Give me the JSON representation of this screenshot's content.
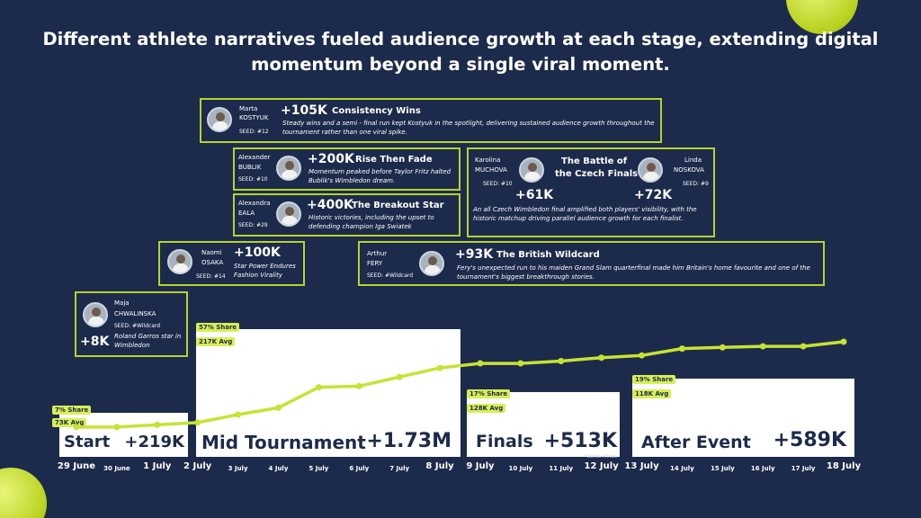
{
  "title": "Different athlete narratives fueled audience growth at each stage, extending digital momentum beyond a single viral moment.",
  "colors": {
    "background": "#1c2b4b",
    "accent": "#c8e234",
    "card_border": "#b5d330",
    "stage_box": "#ffffff"
  },
  "stages": [
    {
      "name": "Start",
      "value": "+219K",
      "share": "7% Share",
      "avg": "73K Avg"
    },
    {
      "name": "Mid Tournament",
      "value": "+1.73M",
      "share": "57% Share",
      "avg": "217K Avg"
    },
    {
      "name": "Finals",
      "value": "+513K",
      "share": "17% Share",
      "avg": "128K Avg"
    },
    {
      "name": "After Event",
      "value": "+589K",
      "share": "19% Share",
      "avg": "118K Avg"
    }
  ],
  "note": "**Semis+Finals",
  "athletes": {
    "kostyuk": {
      "first": "Marta",
      "last": "KOSTYUK",
      "seed": "SEED: #12",
      "gain": "+105K",
      "headline": "Consistency Wins",
      "desc": "Steady wins and a semi - final run kept Kostyuk in the spotlight, delivering sustained audience growth throughout the tournament rather than one viral spike."
    },
    "bublik": {
      "first": "Alexander",
      "last": "BUBLIK",
      "seed": "SEED: #10",
      "gain": "+200K",
      "headline": "Rise Then Fade",
      "desc": "Momentum peaked before Taylor Fritz halted Bublik's Wimbledon dream."
    },
    "eala": {
      "first": "Alexandra",
      "last": "EALA",
      "seed": "SEED: #29",
      "gain": "+400K",
      "headline": "The Breakout Star",
      "desc": "Historic victories, including the upset to defending champion Iga Swiatek"
    },
    "osaka": {
      "first": "Naomi",
      "last": "OSAKA",
      "seed": "SEED: #14",
      "gain": "+100K",
      "desc": "Star Power Endures Fashion Virality"
    },
    "chwalinska": {
      "first": "Maja",
      "last": "CHWALINSKA",
      "seed": "SEED: #Wildcard",
      "gain": "+8K",
      "desc": "Roland Garros star in Wimbledon"
    },
    "czech": {
      "headline1": "The Battle of",
      "headline2": "the Czech Finals",
      "muchova": {
        "first": "Karolina",
        "last": "MUCHOVA",
        "seed": "SEED: #10",
        "gain": "+61K"
      },
      "noskova": {
        "first": "Linda",
        "last": "NOSKOVA",
        "seed": "SEED: #9",
        "gain": "+72K"
      },
      "desc": "An all Czech Wimbledon final amplified both players' visibility, with the historic matchup driving parallel audience growth for each finalist."
    },
    "fery": {
      "first": "Arthur",
      "last": "FERY",
      "seed": "SEED: #Wildcard",
      "gain": "+93K",
      "headline": "The British Wildcard",
      "desc": "Fery's unexpected run to his maiden Grand Slam quarterfinal made him Britain's home favourite and one of the tournament's biggest breakthrough stories."
    }
  },
  "chart_data": {
    "type": "line",
    "x": [
      "29 June",
      "30 June",
      "1 July",
      "2 July",
      "3 July",
      "4 July",
      "5 July",
      "6 July",
      "7 July",
      "8 July",
      "9 July",
      "10 July",
      "11 July",
      "12 July",
      "13 July",
      "14 July",
      "15 July",
      "16 July",
      "17 July",
      "18 July"
    ],
    "series": [
      {
        "values": [
          0.4,
          0.4,
          0.6,
          0.8,
          1.5,
          2.1,
          3.9,
          4.0,
          4.8,
          5.6,
          6.0,
          6.0,
          6.2,
          6.5,
          6.7,
          7.3,
          7.4,
          7.5,
          7.5,
          7.9
        ]
      }
    ],
    "ylim": [
      0,
      10
    ],
    "x_label_emphasis": [
      "29 June",
      "1 July",
      "2 July",
      "8 July",
      "9 July",
      "12 July",
      "13 July",
      "18 July"
    ],
    "grid": false
  }
}
